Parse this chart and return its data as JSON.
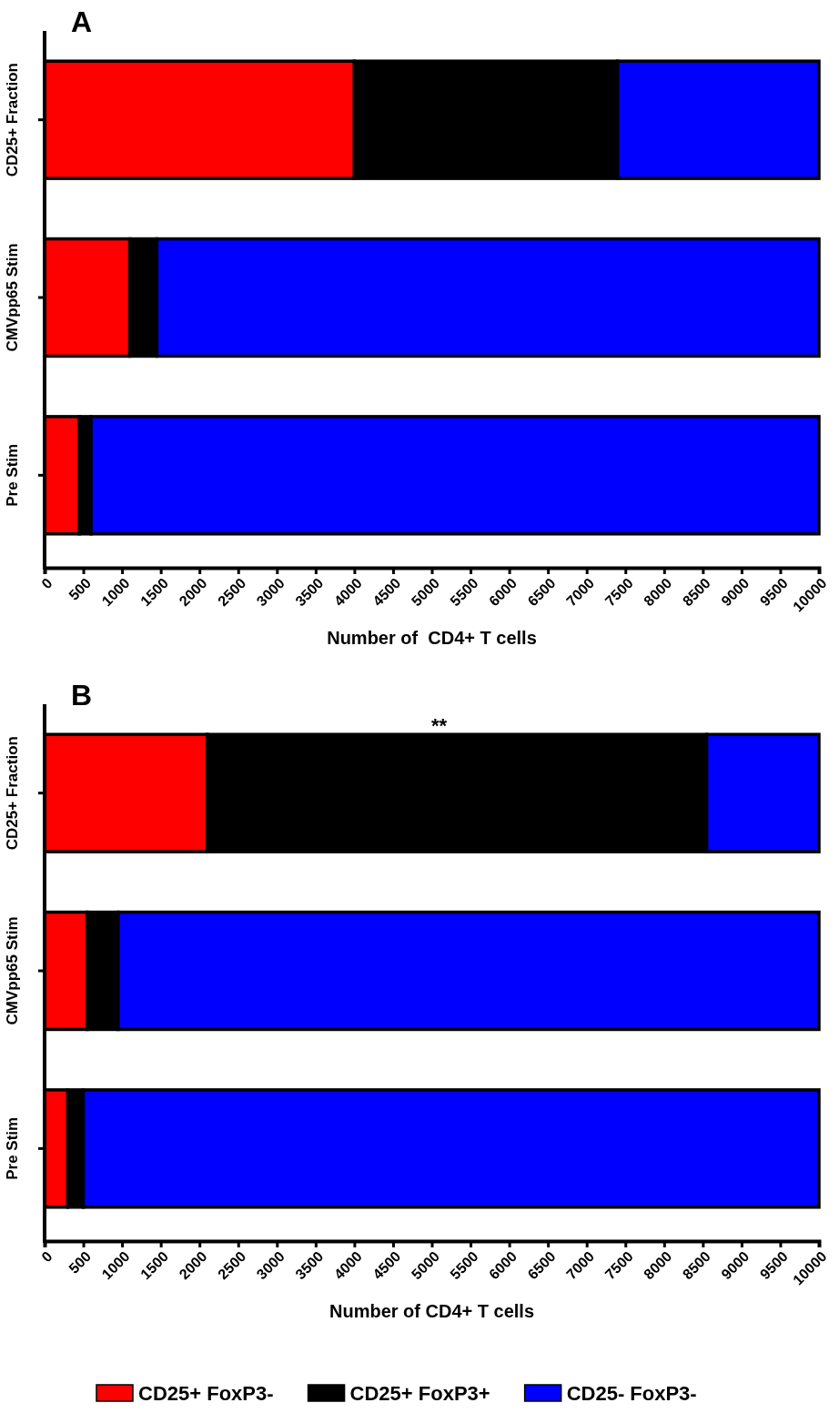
{
  "chart_data": [
    {
      "type": "bar",
      "title": "A",
      "orientation": "horizontal",
      "stacked": true,
      "categories": [
        "CD25+ Fraction",
        "CMVpp65 Stim",
        "Pre Stim"
      ],
      "xlabel": "Number of  CD4+ T cells",
      "xlim": [
        0,
        10000
      ],
      "xticks": [
        0,
        500,
        1000,
        1500,
        2000,
        2500,
        3000,
        3500,
        4000,
        4500,
        5000,
        5500,
        6000,
        6500,
        7000,
        7500,
        8000,
        8500,
        9000,
        9500,
        10000
      ],
      "legend": false,
      "series": [
        {
          "color": "#ff0000",
          "values": [
            4000,
            1100,
            450
          ]
        },
        {
          "color": "#000000",
          "values": [
            3400,
            350,
            150
          ]
        },
        {
          "color": "#0000ff",
          "values": [
            2600,
            8550,
            9400
          ]
        }
      ]
    },
    {
      "type": "bar",
      "title": "B",
      "orientation": "horizontal",
      "stacked": true,
      "categories": [
        "CD25+ Fraction",
        "CMVpp65 Stim",
        "Pre Stim"
      ],
      "xlabel": "Number of CD4+ T cells",
      "xlim": [
        0,
        10000
      ],
      "xticks": [
        0,
        500,
        1000,
        1500,
        2000,
        2500,
        3000,
        3500,
        4000,
        4500,
        5000,
        5500,
        6000,
        6500,
        7000,
        7500,
        8000,
        8500,
        9000,
        9500,
        10000
      ],
      "legend": "bottom",
      "annotations": [
        "**"
      ],
      "series": [
        {
          "name": "CD25+ FoxP3-",
          "color": "#ff0000",
          "values": [
            2100,
            550,
            300
          ]
        },
        {
          "name": "CD25+ FoxP3+",
          "color": "#000000",
          "values": [
            6450,
            400,
            200
          ]
        },
        {
          "name": "CD25- FoxP3-",
          "color": "#0000ff",
          "values": [
            1450,
            9050,
            9500
          ]
        }
      ]
    }
  ]
}
